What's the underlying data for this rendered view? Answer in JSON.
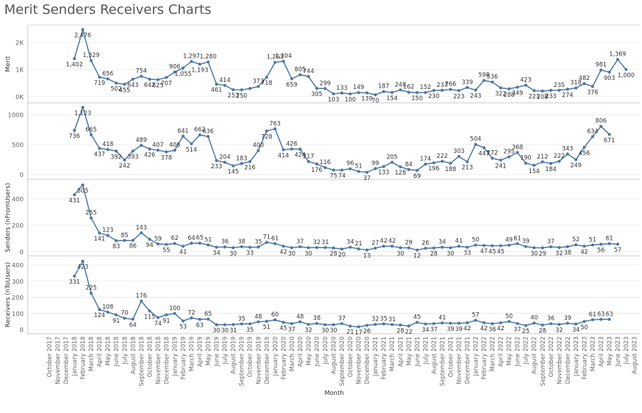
{
  "page": {
    "title": "Merit Senders Receivers Charts"
  },
  "colors": {
    "series": "#4e79a7",
    "grid": "#d9d9d9",
    "axis_text": "#666666",
    "label_text": "#333333",
    "title_text": "#555555"
  },
  "chart_data": {
    "type": "line",
    "xlabel": "Month",
    "x": [
      "October 2017",
      "November 2017",
      "December 2017",
      "January 2018",
      "February 2018",
      "March 2018",
      "April 2018",
      "May 2018",
      "June 2018",
      "July 2018",
      "August 2018",
      "September 2018",
      "October 2018",
      "November 2018",
      "December 2018",
      "January 2019",
      "February 2019",
      "March 2019",
      "April 2019",
      "May 2019",
      "June 2019",
      "July 2019",
      "August 2019",
      "September 2019",
      "October 2019",
      "November 2019",
      "December 2019",
      "January 2020",
      "February 2020",
      "March 2020",
      "April 2020",
      "May 2020",
      "June 2020",
      "July 2020",
      "August 2020",
      "September 2020",
      "October 2020",
      "November 2020",
      "December 2020",
      "January 2021",
      "February 2021",
      "March 2021",
      "April 2021",
      "May 2021",
      "June 2021",
      "July 2021",
      "August 2021",
      "September 2021",
      "October 2021",
      "November 2021",
      "December 2021",
      "January 2022",
      "February 2022",
      "March 2022",
      "April 2022",
      "May 2022",
      "June 2022",
      "July 2022",
      "August 2022",
      "September 2022",
      "October 2022",
      "November 2022",
      "December 2022",
      "January 2023",
      "February 2023",
      "March 2023",
      "April 2023",
      "May 2023",
      "June 2023",
      "July 2023",
      "August 2023"
    ],
    "x_range": [
      "October 2017",
      "August 2023"
    ],
    "data_start": "January 2018",
    "data_end": "June 2023",
    "grid": true,
    "panels": [
      {
        "name": "Merit",
        "ylabel": "Merit",
        "ylim": [
          0,
          2500
        ],
        "yticks": [
          {
            "value": 0,
            "label": "0K"
          },
          {
            "value": 1000,
            "label": "1K"
          },
          {
            "value": 2000,
            "label": "2K"
          }
        ],
        "values": [
          1402,
          2476,
          1329,
          719,
          656,
          502,
          455,
          643,
          754,
          642,
          625,
          707,
          906,
          1055,
          1297,
          1193,
          1280,
          461,
          414,
          253,
          250,
          299,
          373,
          718,
          1263,
          1304,
          659,
          805,
          744,
          305,
          299,
          103,
          133,
          100,
          149,
          139,
          70,
          187,
          154,
          248,
          162,
          150,
          152,
          230,
          237,
          266,
          223,
          339,
          243,
          598,
          536,
          322,
          288,
          349,
          423,
          221,
          208,
          233,
          235,
          274,
          318,
          482,
          376,
          981,
          903,
          1369,
          1000
        ],
        "labels": [
          "1,402",
          "2,476",
          "1,329",
          "719",
          "656",
          "502",
          "455",
          "643",
          "754",
          "642",
          "625",
          "707",
          "906",
          "1,055",
          "1,297",
          "1,193",
          "1,280",
          "461",
          "414",
          "253",
          "250",
          "",
          "373",
          "718",
          "1,263",
          "1,304",
          "659",
          "805",
          "744",
          "305",
          "299",
          "103",
          "133",
          "100",
          "149",
          "139",
          "70",
          "187",
          "154",
          "248",
          "162",
          "150",
          "152",
          "230",
          "237",
          "266",
          "223",
          "339",
          "243",
          "598",
          "536",
          "322",
          "288",
          "349",
          "423",
          "221",
          "208",
          "233",
          "235",
          "274",
          "318",
          "482",
          "376",
          "981",
          "903",
          "1,369",
          "1,000"
        ]
      },
      {
        "name": "Senders",
        "ylabel": "",
        "ylim": [
          0,
          1150
        ],
        "yticks": [
          {
            "value": 0,
            "label": "0"
          },
          {
            "value": 500,
            "label": "500"
          },
          {
            "value": 1000,
            "label": "1000"
          }
        ],
        "values": [
          736,
          1123,
          665,
          437,
          418,
          392,
          242,
          393,
          489,
          426,
          407,
          378,
          406,
          641,
          514,
          662,
          636,
          233,
          204,
          145,
          183,
          216,
          400,
          728,
          763,
          414,
          426,
          424,
          217,
          176,
          116,
          75,
          74,
          96,
          51,
          37,
          99,
          133,
          205,
          128,
          84,
          69,
          174,
          196,
          222,
          188,
          303,
          213,
          504,
          447,
          272,
          241,
          295,
          368,
          190,
          154,
          212,
          184,
          222,
          343,
          249,
          456,
          634,
          806,
          671
        ],
        "labels": [
          "736",
          "1,123",
          "665",
          "437",
          "418",
          "392",
          "242",
          "393",
          "489",
          "426",
          "407",
          "378",
          "406",
          "641",
          "514",
          "662",
          "636",
          "233",
          "204",
          "145",
          "183",
          "216",
          "400",
          "728",
          "763",
          "414",
          "426",
          "424",
          "217",
          "176",
          "116",
          "75",
          "74",
          "96",
          "51",
          "37",
          "99",
          "133",
          "205",
          "128",
          "84",
          "69",
          "174",
          "196",
          "222",
          "188",
          "303",
          "213",
          "504",
          "447",
          "272",
          "241",
          "295",
          "368",
          "190",
          "154",
          "212",
          "184",
          "222",
          "343",
          "249",
          "456",
          "634",
          "806",
          "671"
        ]
      },
      {
        "name": "Senders (nFromUsers)",
        "ylabel": "Senders (nFromUsers)",
        "ylim": [
          0,
          540
        ],
        "yticks": [
          {
            "value": 0,
            "label": "0"
          },
          {
            "value": 200,
            "label": "200"
          },
          {
            "value": 400,
            "label": "400"
          }
        ],
        "values": [
          431,
          505,
          255,
          141,
          123,
          83,
          85,
          86,
          143,
          94,
          59,
          55,
          62,
          41,
          64,
          65,
          51,
          34,
          36,
          30,
          38,
          33,
          35,
          71,
          61,
          42,
          30,
          37,
          30,
          32,
          31,
          28,
          20,
          34,
          21,
          13,
          27,
          42,
          42,
          30,
          29,
          12,
          26,
          28,
          34,
          30,
          41,
          33,
          50,
          47,
          45,
          45,
          49,
          61,
          39,
          30,
          29,
          37,
          32,
          38,
          52,
          42,
          51,
          56,
          61,
          57
        ],
        "labels": [
          "431",
          "505",
          "255",
          "141",
          "123",
          "83",
          "85",
          "86",
          "143",
          "94",
          "59",
          "55",
          "62",
          "41",
          "64",
          "65",
          "51",
          "34",
          "36",
          "30",
          "38",
          "33",
          "35",
          "71",
          "61",
          "42",
          "30",
          "37",
          "30",
          "32",
          "31",
          "28",
          "20",
          "34",
          "21",
          "13",
          "27",
          "42",
          "42",
          "30",
          "29",
          "12",
          "26",
          "28",
          "34",
          "30",
          "41",
          "33",
          "50",
          "47",
          "45",
          "45",
          "49",
          "61",
          "39",
          "30",
          "29",
          "37",
          "32",
          "38",
          "52",
          "42",
          "51",
          "56",
          "61",
          "57"
        ]
      },
      {
        "name": "Receivers (nToUsers)",
        "ylabel": "Receivers (nToUsers)",
        "ylim": [
          0,
          450
        ],
        "yticks": [
          {
            "value": 0,
            "label": "0"
          },
          {
            "value": 100,
            "label": "100"
          },
          {
            "value": 200,
            "label": "200"
          },
          {
            "value": 300,
            "label": "300"
          },
          {
            "value": 400,
            "label": "400"
          }
        ],
        "values": [
          331,
          423,
          225,
          124,
          108,
          91,
          70,
          64,
          176,
          115,
          74,
          91,
          100,
          53,
          72,
          63,
          65,
          30,
          30,
          31,
          35,
          35,
          48,
          51,
          60,
          45,
          37,
          48,
          32,
          38,
          30,
          30,
          37,
          21,
          17,
          26,
          32,
          35,
          31,
          28,
          22,
          45,
          34,
          37,
          41,
          39,
          39,
          42,
          57,
          42,
          36,
          42,
          50,
          37,
          25,
          40,
          28,
          36,
          32,
          39,
          34,
          50,
          61,
          63,
          63
        ],
        "labels": [
          "331",
          "423",
          "225",
          "124",
          "108",
          "91",
          "70",
          "64",
          "176",
          "115",
          "74",
          "91",
          "100",
          "53",
          "72",
          "63",
          "65",
          "30",
          "30",
          "31",
          "35",
          "35",
          "48",
          "51",
          "60",
          "45",
          "37",
          "48",
          "32",
          "38",
          "30",
          "30",
          "37",
          "21",
          "17",
          "26",
          "32",
          "35",
          "31",
          "28",
          "22",
          "45",
          "34",
          "37",
          "41",
          "39",
          "39",
          "42",
          "57",
          "42",
          "36",
          "42",
          "50",
          "37",
          "25",
          "40",
          "28",
          "36",
          "32",
          "39",
          "34",
          "50",
          "61",
          "63",
          "63"
        ]
      }
    ]
  }
}
